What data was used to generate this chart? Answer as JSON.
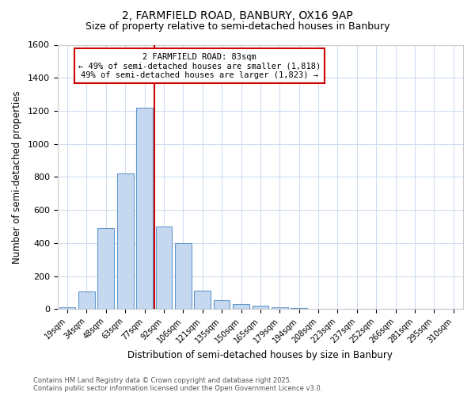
{
  "title_line1": "2, FARMFIELD ROAD, BANBURY, OX16 9AP",
  "title_line2": "Size of property relative to semi-detached houses in Banbury",
  "xlabel": "Distribution of semi-detached houses by size in Banbury",
  "ylabel": "Number of semi-detached properties",
  "categories": [
    "19sqm",
    "34sqm",
    "48sqm",
    "63sqm",
    "77sqm",
    "92sqm",
    "106sqm",
    "121sqm",
    "135sqm",
    "150sqm",
    "165sqm",
    "179sqm",
    "194sqm",
    "208sqm",
    "223sqm",
    "237sqm",
    "252sqm",
    "266sqm",
    "281sqm",
    "295sqm",
    "310sqm"
  ],
  "bar_heights": [
    10,
    105,
    490,
    820,
    1220,
    500,
    400,
    110,
    55,
    30,
    20,
    10,
    5,
    0,
    0,
    0,
    0,
    0,
    0,
    0,
    0
  ],
  "bar_color": "#c5d8f0",
  "bar_edge_color": "#6699cc",
  "pct_smaller": 49,
  "pct_larger": 49,
  "n_smaller": 1818,
  "n_larger": 1823,
  "vline_color": "#cc0000",
  "vline_x": 4.5,
  "ylim": [
    0,
    1600
  ],
  "yticks": [
    0,
    200,
    400,
    600,
    800,
    1000,
    1200,
    1400,
    1600
  ],
  "background_color": "#ffffff",
  "plot_bg_color": "#ffffff",
  "grid_color": "#d0ddf0",
  "footnote_line1": "Contains HM Land Registry data © Crown copyright and database right 2025.",
  "footnote_line2": "Contains public sector information licensed under the Open Government Licence v3.0."
}
